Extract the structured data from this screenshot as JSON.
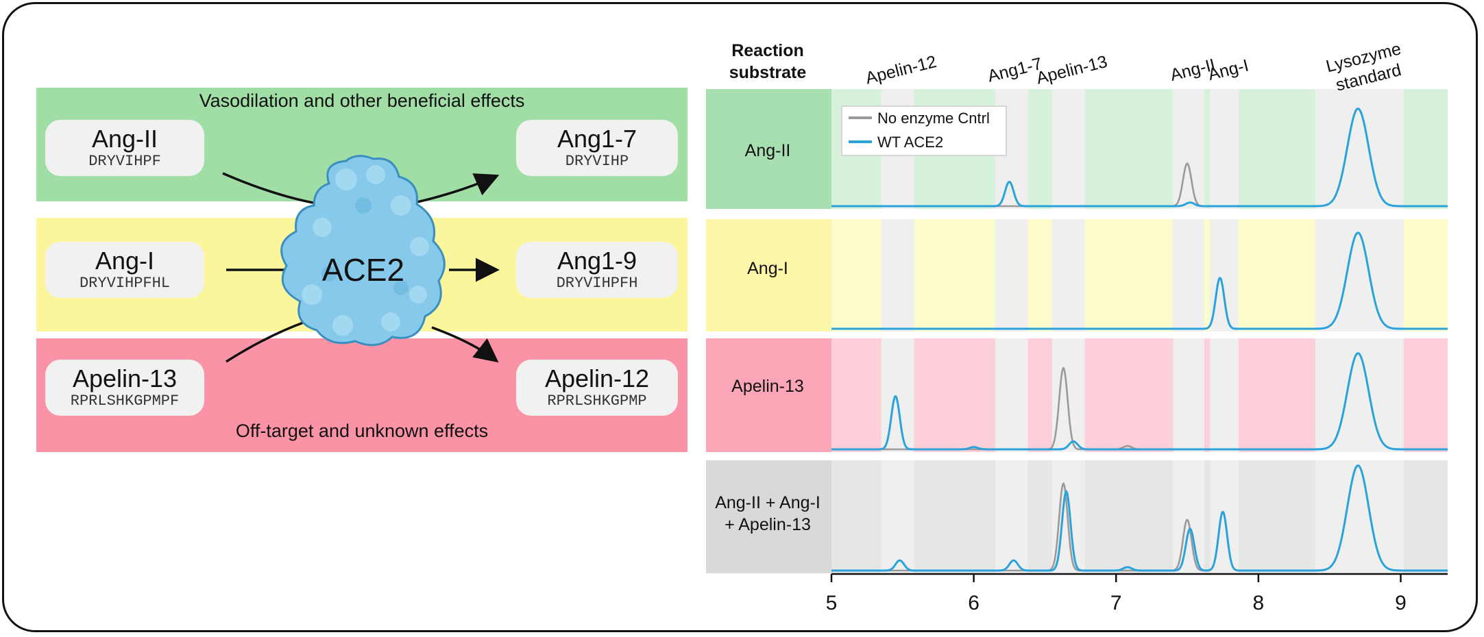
{
  "left_panel": {
    "bands": [
      {
        "id": "green",
        "color": "#a0dea6",
        "caption": "Vasodilation and other beneficial effects"
      },
      {
        "id": "yellow",
        "color": "#fbf59c",
        "caption": ""
      },
      {
        "id": "pink",
        "color": "#fb93a6",
        "caption": "Off-target and unknown effects"
      }
    ],
    "enzyme_label": "ACE2",
    "substrates": [
      {
        "name": "Ang-II",
        "seq": "DRYVIHPF"
      },
      {
        "name": "Ang-I",
        "seq": "DRYVIHPFHL"
      },
      {
        "name": "Apelin-13",
        "seq": "RPRLSHKGPMPF"
      }
    ],
    "products": [
      {
        "name": "Ang1-7",
        "seq": "DRYVIHP"
      },
      {
        "name": "Ang1-9",
        "seq": "DRYVIHPFH"
      },
      {
        "name": "Apelin-12",
        "seq": "RPRLSHKGPMP"
      }
    ]
  },
  "right_panel": {
    "column_header": [
      "Reaction",
      "substrate"
    ],
    "peak_labels": [
      {
        "text": "Apelin-12",
        "x": 5.45
      },
      {
        "text": "Ang1-7",
        "x": 6.25
      },
      {
        "text": "Apelin-13",
        "x": 6.65
      },
      {
        "text": "Ang-II",
        "x": 7.5
      },
      {
        "text": "Ang-I",
        "x": 7.75
      },
      {
        "text": [
          "Lysozyme",
          "standard"
        ],
        "x": 8.7
      }
    ],
    "rows": [
      {
        "label": [
          "Ang-II"
        ],
        "band_color": "#a8dfb0",
        "light_color": "#d7f1da"
      },
      {
        "label": [
          "Ang-I"
        ],
        "band_color": "#fbf6a8",
        "light_color": "#fcfbcc"
      },
      {
        "label": [
          "Apelin-13"
        ],
        "band_color": "#fba6b6",
        "light_color": "#fdd0d9"
      },
      {
        "label": [
          "Ang-II + Ang-I",
          "+ Apelin-13"
        ],
        "band_color": "#d9d9d9",
        "light_color": "#e6e6e6"
      }
    ],
    "legend": [
      {
        "name": "No enzyme Cntrl",
        "color": "#9a9a9a"
      },
      {
        "name": "WT ACE2",
        "color": "#2aa3dc"
      }
    ],
    "axis": {
      "ticks": [
        5,
        6,
        7,
        8,
        9
      ],
      "xlim": [
        5,
        9.33
      ]
    },
    "retention_windows": [
      [
        5.35,
        5.58
      ],
      [
        6.15,
        6.38
      ],
      [
        6.55,
        6.78
      ],
      [
        7.4,
        7.62
      ],
      [
        7.66,
        7.86
      ],
      [
        8.4,
        9.02
      ]
    ]
  },
  "chart_data": {
    "type": "line",
    "xlim": [
      5,
      9.33
    ],
    "x_ticks": [
      5,
      6,
      7,
      8,
      9
    ],
    "series": [
      {
        "name": "No enzyme Cntrl",
        "color": "#9a9a9a"
      },
      {
        "name": "WT ACE2",
        "color": "#2aa3dc"
      }
    ],
    "panels": [
      {
        "substrate": "Ang-II",
        "No enzyme Cntrl": [
          [
            7.5,
            0.35
          ],
          [
            8.7,
            0.8
          ]
        ],
        "WT ACE2": [
          [
            6.25,
            0.2
          ],
          [
            7.52,
            0.03
          ],
          [
            8.7,
            0.8
          ]
        ]
      },
      {
        "substrate": "Ang-I",
        "No enzyme Cntrl": [
          [
            7.73,
            0.45
          ],
          [
            8.7,
            0.85
          ]
        ],
        "WT ACE2": [
          [
            7.73,
            0.45
          ],
          [
            8.7,
            0.85
          ]
        ]
      },
      {
        "substrate": "Apelin-13",
        "No enzyme Cntrl": [
          [
            6.63,
            0.72
          ],
          [
            7.08,
            0.03
          ],
          [
            8.7,
            0.85
          ]
        ],
        "WT ACE2": [
          [
            5.45,
            0.47
          ],
          [
            6.0,
            0.02
          ],
          [
            6.7,
            0.07
          ],
          [
            8.7,
            0.85
          ]
        ]
      },
      {
        "substrate": "Ang-II + Ang-I + Apelin-13",
        "No enzyme Cntrl": [
          [
            6.63,
            0.77
          ],
          [
            7.5,
            0.45
          ],
          [
            7.75,
            0.52
          ],
          [
            8.7,
            0.93
          ]
        ],
        "WT ACE2": [
          [
            5.48,
            0.09
          ],
          [
            6.28,
            0.09
          ],
          [
            6.65,
            0.7
          ],
          [
            7.08,
            0.03
          ],
          [
            7.52,
            0.37
          ],
          [
            7.75,
            0.52
          ],
          [
            8.7,
            0.93
          ]
        ]
      }
    ]
  }
}
